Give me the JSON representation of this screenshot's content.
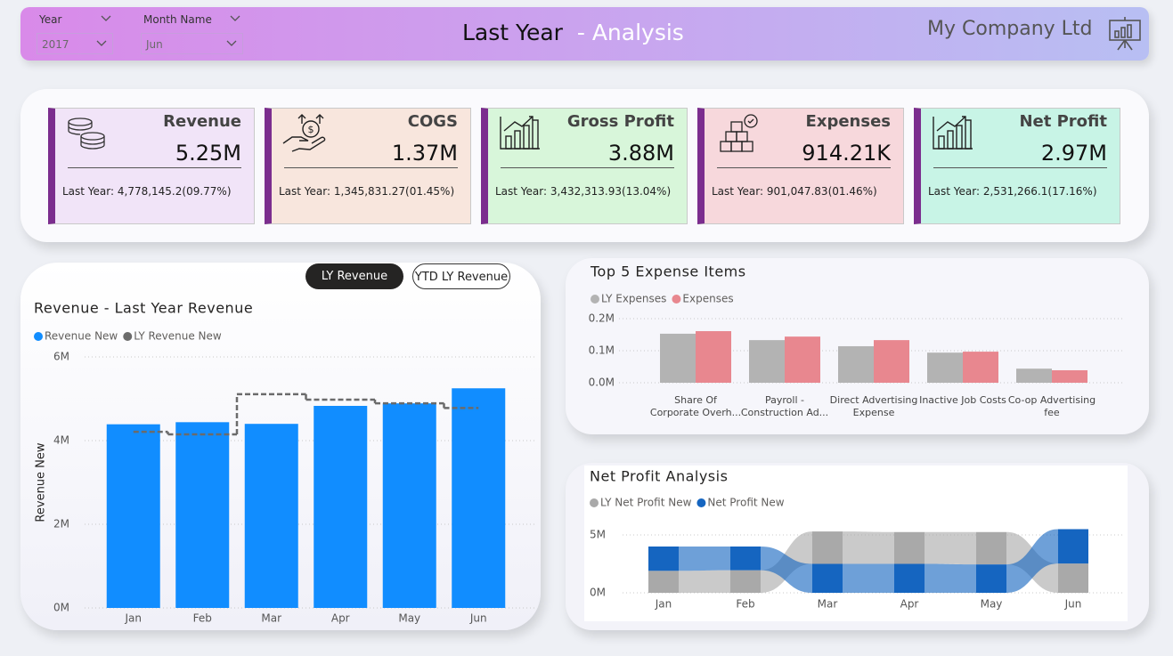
{
  "header": {
    "title": "Last Year",
    "subtitle": "- Analysis",
    "company": "My Company Ltd"
  },
  "filters": [
    {
      "label": "Year",
      "value": "2017"
    },
    {
      "label": "Month Name",
      "value": "Jun"
    }
  ],
  "kpis": [
    {
      "name": "Revenue",
      "value": "5.25M",
      "last_year": "Last Year: 4,778,145.2(09.77%)",
      "color": "#f1e4f8"
    },
    {
      "name": "COGS",
      "value": "1.37M",
      "last_year": "Last Year: 1,345,831.27(01.45%)",
      "color": "#f8e6dd"
    },
    {
      "name": "Gross Profit",
      "value": "3.88M",
      "last_year": "Last Year:  3,432,313.93(13.04%)",
      "color": "#d8f6da"
    },
    {
      "name": "Expenses",
      "value": "914.21K",
      "last_year": "Last Year: 901,047.83(01.46%)",
      "color": "#f7d8dc"
    },
    {
      "name": "Net Profit",
      "value": "2.97M",
      "last_year": "Last Year:  2,531,266.1(17.16%)",
      "color": "#c8f4e6"
    }
  ],
  "toggles": [
    "LY Revenue",
    "YTD LY Revenue"
  ],
  "chart_data": [
    {
      "type": "bar",
      "title": "Revenue - Last Year Revenue",
      "y_label": "Revenue New",
      "categories": [
        "Jan",
        "Feb",
        "Mar",
        "Apr",
        "May",
        "Jun"
      ],
      "series": [
        {
          "name": "Revenue New",
          "color": "#118dff",
          "values": [
            4390000,
            4440000,
            4400000,
            4830000,
            4890000,
            5250000
          ]
        },
        {
          "name": "LY Revenue New",
          "color": "#6b6b6b",
          "type": "line",
          "line_style": "dashed",
          "values": [
            4210000,
            4150000,
            5110000,
            4980000,
            4890000,
            4778145.2
          ]
        }
      ],
      "ylim": [
        0,
        6000000
      ],
      "yticks": [
        {
          "value": 0,
          "label": "0M"
        },
        {
          "value": 2000000,
          "label": "2M"
        },
        {
          "value": 4000000,
          "label": "4M"
        },
        {
          "value": 6000000,
          "label": "6M"
        }
      ],
      "grid": true
    },
    {
      "type": "bar",
      "title": "Top 5 Expense Items",
      "categories": [
        "Share Of Corporate Overh...",
        "Payroll - Construction Ad...",
        "Direct Advertising Expense",
        "Inactive Job Costs",
        "Co-op Advertising fee"
      ],
      "series": [
        {
          "name": "LY Expenses",
          "color": "#b3b3b3",
          "values": [
            153000,
            133000,
            114000,
            94000,
            44000
          ]
        },
        {
          "name": "Expenses",
          "color": "#e8878f",
          "values": [
            161000,
            144000,
            133000,
            97000,
            39000
          ]
        }
      ],
      "ylim": [
        0,
        200000
      ],
      "yticks": [
        {
          "value": 0,
          "label": "0.0M"
        },
        {
          "value": 100000,
          "label": "0.1M"
        },
        {
          "value": 200000,
          "label": "0.2M"
        }
      ],
      "grid": true
    },
    {
      "type": "ribbon",
      "title": "Net Profit Analysis",
      "categories": [
        "Jan",
        "Feb",
        "Mar",
        "Apr",
        "May",
        "Jun"
      ],
      "series": [
        {
          "name": "LY Net Profit New",
          "color": "#a9a9a9",
          "values": [
            1900000,
            1950000,
            2800000,
            2750000,
            2800000,
            2530000
          ]
        },
        {
          "name": "Net Profit New",
          "color": "#1565c0",
          "values": [
            2100000,
            2050000,
            2500000,
            2500000,
            2450000,
            2970000
          ]
        }
      ],
      "ylim": [
        0,
        6000000
      ],
      "yticks": [
        {
          "value": 0,
          "label": "0M"
        },
        {
          "value": 5000000,
          "label": "5M"
        }
      ],
      "grid": true
    }
  ]
}
